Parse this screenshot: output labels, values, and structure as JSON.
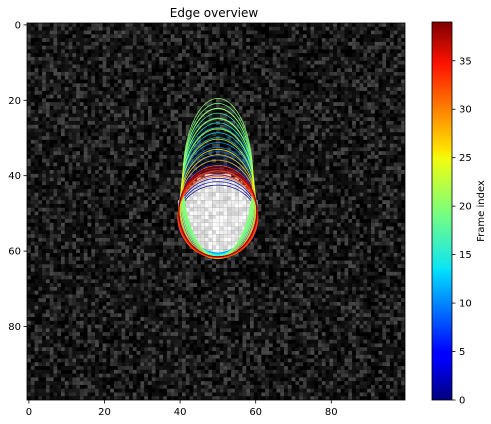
{
  "chart_data": {
    "type": "heatmap",
    "title": "Edge overview",
    "xlabel": "",
    "ylabel": "",
    "image": {
      "rows": 100,
      "cols": 100,
      "colormap": "gray",
      "background": "noise",
      "bright_disk": {
        "cx": 50,
        "cy": 50,
        "r": 10.5
      }
    },
    "x_ticks": [
      0,
      20,
      40,
      60,
      80
    ],
    "y_ticks": [
      0,
      20,
      40,
      60,
      80
    ],
    "xlim": [
      -0.5,
      99.5
    ],
    "ylim": [
      99.5,
      -0.5
    ],
    "edge_overlays": {
      "count": 40,
      "colormap": "jet",
      "frames": [
        {
          "frame": 0,
          "cx": 50,
          "cy": 52.0,
          "rx": 10.6,
          "ry": 9.5
        },
        {
          "frame": 5,
          "cx": 50,
          "cy": 49.5,
          "rx": 10.4,
          "ry": 11.5
        },
        {
          "frame": 10,
          "cx": 50,
          "cy": 46.5,
          "rx": 10.0,
          "ry": 14.0
        },
        {
          "frame": 15,
          "cx": 50,
          "cy": 43.5,
          "rx": 9.5,
          "ry": 17.5
        },
        {
          "frame": 20,
          "cx": 50,
          "cy": 40.5,
          "rx": 9.2,
          "ry": 21.0
        },
        {
          "frame": 25,
          "cx": 50,
          "cy": 47.5,
          "rx": 10.0,
          "ry": 14.5
        },
        {
          "frame": 30,
          "cx": 50,
          "cy": 51.0,
          "rx": 10.6,
          "ry": 10.8
        },
        {
          "frame": 35,
          "cx": 50,
          "cy": 49.5,
          "rx": 10.3,
          "ry": 12.0
        }
      ]
    },
    "colorbar": {
      "label": "Frame index",
      "min": 0,
      "max": 39,
      "ticks": [
        0,
        5,
        10,
        15,
        20,
        25,
        30,
        35
      ]
    }
  }
}
